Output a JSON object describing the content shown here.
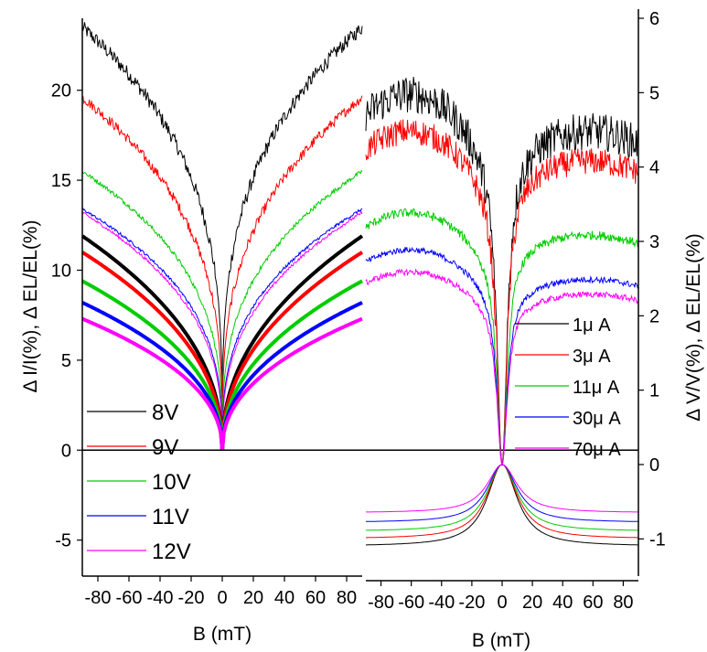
{
  "chart_data": [
    {
      "type": "line",
      "xlabel": "B (mT)",
      "ylabel": "Δ I/I(%), Δ EL/EL(%)",
      "xlim": [
        -90,
        90
      ],
      "ylim": [
        -7,
        24
      ],
      "xticks": [
        -80,
        -60,
        -40,
        -20,
        0,
        20,
        40,
        60,
        80
      ],
      "yticks": [
        -5,
        0,
        5,
        10,
        15,
        20
      ],
      "legend_position": "left",
      "series_thin": [
        {
          "name": "8V",
          "color": "#000000",
          "sat": 23.5,
          "shape": 1.3,
          "noise": 0.4
        },
        {
          "name": "9V",
          "color": "#ff0000",
          "sat": 19.6,
          "shape": 1.2,
          "noise": 0.28
        },
        {
          "name": "10V",
          "color": "#00cc00",
          "sat": 15.5,
          "shape": 1.15,
          "noise": 0.12
        },
        {
          "name": "11V",
          "color": "#0000ff",
          "sat": 13.4,
          "shape": 1.1,
          "noise": 0.08
        },
        {
          "name": "12V",
          "color": "#ff00ff",
          "sat": 13.2,
          "shape": 1.05,
          "noise": 0.08
        }
      ],
      "series_thick": [
        {
          "name": "8V",
          "color": "#000000",
          "sat": 11.9
        },
        {
          "name": "9V",
          "color": "#ff0000",
          "sat": 11.0
        },
        {
          "name": "10V",
          "color": "#00cc00",
          "sat": 9.4
        },
        {
          "name": "11V",
          "color": "#0000ff",
          "sat": 8.2
        },
        {
          "name": "12V",
          "color": "#ff00ff",
          "sat": 7.3
        }
      ]
    },
    {
      "type": "line",
      "xlabel": "B (mT)",
      "ylabel": "Δ V/V(%), Δ EL/EL(%)",
      "xlim": [
        -90,
        90
      ],
      "ylim": [
        -1.5,
        6
      ],
      "xticks": [
        -80,
        -60,
        -40,
        -20,
        0,
        20,
        40,
        60,
        80
      ],
      "yticks": [
        -1,
        0,
        1,
        2,
        3,
        4,
        5,
        6
      ],
      "legend_position": "right",
      "series_el": [
        {
          "name": "1μ A",
          "color": "#000000",
          "peak": 5.0,
          "end": 4.5,
          "noise": 0.25
        },
        {
          "name": "3μ A",
          "color": "#ff0000",
          "peak": 4.5,
          "end": 4.1,
          "noise": 0.18
        },
        {
          "name": "11μ A",
          "color": "#00cc00",
          "peak": 3.4,
          "end": 3.1,
          "noise": 0.06
        },
        {
          "name": "30μ A",
          "color": "#0000ff",
          "peak": 2.9,
          "end": 2.5,
          "noise": 0.04
        },
        {
          "name": "70μ A",
          "color": "#ff00ff",
          "peak": 2.6,
          "end": 2.3,
          "noise": 0.04
        }
      ],
      "series_v": [
        {
          "name": "1μ A",
          "color": "#000000",
          "sat": -1.1
        },
        {
          "name": "3μ A",
          "color": "#ff0000",
          "sat": -1.0
        },
        {
          "name": "11μ A",
          "color": "#00cc00",
          "sat": -0.9
        },
        {
          "name": "30μ A",
          "color": "#0000ff",
          "sat": -0.78
        },
        {
          "name": "70μ A",
          "color": "#ff00ff",
          "sat": -0.65
        }
      ]
    }
  ],
  "labels": {
    "left_ylabel": "Δ I/I(%), Δ EL/EL(%)",
    "right_ylabel": "Δ V/V(%), Δ EL/EL(%)",
    "left_xlabel": "B (mT)",
    "right_xlabel": "B (mT)"
  },
  "legend_left": [
    "8V",
    "9V",
    "10V",
    "11V",
    "12V"
  ],
  "legend_right": [
    "1μ A",
    "3μ A",
    "11μ A",
    "30μ A",
    "70μ A"
  ],
  "colors": [
    "#000000",
    "#ff0000",
    "#00cc00",
    "#0000ff",
    "#ff00ff"
  ]
}
